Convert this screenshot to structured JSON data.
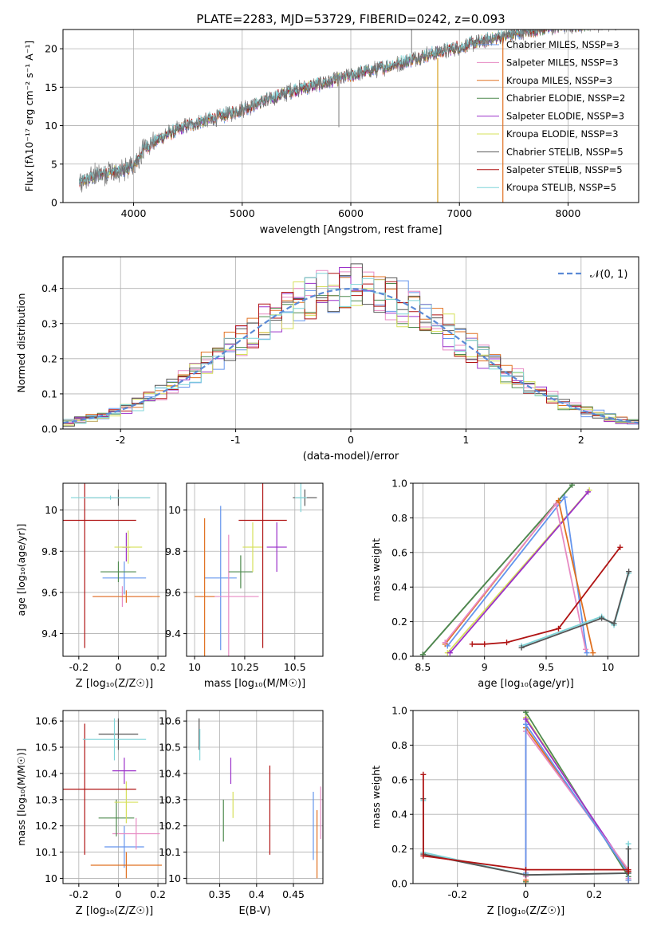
{
  "title": "PLATE=2283, MJD=53729, FIBERID=0242, z=0.093",
  "colors": {
    "Chabrier MILES": "#6495ed",
    "Salpeter MILES": "#e78ac3",
    "Kroupa MILES": "#e07020",
    "Chabrier ELODIE": "#4e8a4e",
    "Salpeter ELODIE": "#9b30c9",
    "Kroupa ELODIE": "#d6e05a",
    "Chabrier STELIB": "#555555",
    "Salpeter STELIB": "#b01414",
    "Kroupa STELIB": "#7fd4d8"
  },
  "chart_data": [
    {
      "id": "spectrum",
      "type": "line",
      "xlabel": "wavelength [Angstrom, rest frame]",
      "ylabel": "Flux [fλ10⁻¹⁷ erg cm⁻² s⁻¹ A⁻¹]",
      "xlim": [
        3350,
        8650
      ],
      "ylim": [
        0,
        22.5
      ],
      "xticks": [
        4000,
        5000,
        6000,
        7000,
        8000
      ],
      "yticks": [
        0,
        5,
        10,
        15,
        20
      ],
      "grid": true,
      "legend_position": "right",
      "legend": [
        "Chabrier MILES, NSSP=3",
        "Salpeter MILES, NSSP=3",
        "Kroupa MILES, NSSP=3",
        "Chabrier ELODIE, NSSP=2",
        "Salpeter ELODIE, NSSP=3",
        "Kroupa ELODIE, NSSP=3",
        "Chabrier STELIB, NSSP=5",
        "Salpeter STELIB, NSSP=5",
        "Kroupa STELIB, NSSP=5"
      ],
      "continuum": {
        "x": [
          3500,
          3700,
          3850,
          4000,
          4100,
          4300,
          4500,
          4800,
          5000,
          5200,
          5500,
          5800,
          6100,
          6400,
          6700,
          7000,
          7300,
          7600,
          7900,
          8200,
          8500
        ],
        "y": [
          2.5,
          3.8,
          4.0,
          4.7,
          7.1,
          8.8,
          10.0,
          11.2,
          12.1,
          13.2,
          14.7,
          15.7,
          16.9,
          17.9,
          19.2,
          20.2,
          21.3,
          22.2,
          22.9,
          23.2,
          23.6
        ]
      },
      "data_spikes": [
        {
          "x": 6800,
          "y_from": 18.8,
          "y_to": 0
        },
        {
          "x": 7400,
          "y_from": 21.5,
          "y_to": 0
        },
        {
          "x": 6560,
          "y_from": 19.5,
          "y_to": 22.5
        },
        {
          "x": 5890,
          "y_from": 16.3,
          "y_to": 9.8
        }
      ]
    },
    {
      "id": "residuals",
      "type": "bar",
      "xlabel": "(data-model)/error",
      "ylabel": "Normed distribution",
      "xlim": [
        -2.5,
        2.5
      ],
      "ylim": [
        0,
        0.49
      ],
      "xticks": [
        -2,
        -1,
        0,
        1,
        2
      ],
      "yticks": [
        0.0,
        0.1,
        0.2,
        0.3,
        0.4
      ],
      "grid": true,
      "bin_width": 0.1,
      "legend": "𝒩(0, 1)",
      "legend_position": "upper right",
      "reference": "normal(0,1)"
    },
    {
      "id": "age_vs_Z",
      "type": "scatter",
      "xlabel": "Z [log₁₀(Z/Z☉)]",
      "ylabel": "age  [log₁₀(age/yr)]",
      "xlim": [
        -0.28,
        0.24
      ],
      "ylim": [
        9.29,
        10.13
      ],
      "xticks": [
        -0.2,
        0.0,
        0.2
      ],
      "yticks": [
        9.4,
        9.6,
        9.8,
        10.0
      ],
      "grid": true,
      "points": [
        {
          "model": "Chabrier MILES",
          "x": 0.03,
          "y": 9.67,
          "xerr": 0.11,
          "yerr": 0.08
        },
        {
          "model": "Salpeter MILES",
          "x": 0.02,
          "y": 9.58,
          "xerr": 0.15,
          "yerr": 0.05
        },
        {
          "model": "Kroupa MILES",
          "x": 0.04,
          "y": 9.58,
          "xerr": 0.17,
          "yerr": 0.03
        },
        {
          "model": "Chabrier ELODIE",
          "x": 0.0,
          "y": 9.7,
          "xerr": 0.09,
          "yerr": 0.05
        },
        {
          "model": "Salpeter ELODIE",
          "x": 0.04,
          "y": 9.82,
          "xerr": 0.02,
          "yerr": 0.07
        },
        {
          "model": "Kroupa ELODIE",
          "x": 0.05,
          "y": 9.82,
          "xerr": 0.07,
          "yerr": 0.08
        },
        {
          "model": "Chabrier STELIB",
          "x": 0.0,
          "y": 10.06,
          "xerr": 0.16,
          "yerr": 0.04
        },
        {
          "model": "Salpeter STELIB",
          "x": -0.17,
          "y": 9.95,
          "xerr": 0.26,
          "yerr": 0.62
        },
        {
          "model": "Kroupa STELIB",
          "x": -0.04,
          "y": 10.06,
          "xerr": 0.2,
          "yerr": 0.01
        }
      ]
    },
    {
      "id": "age_vs_mass",
      "type": "scatter",
      "xlabel": "mass [log₁₀(M/M☉)]",
      "ylabel": "",
      "xlim": [
        9.96,
        10.64
      ],
      "ylim": [
        9.29,
        10.13
      ],
      "xticks": [
        10.0,
        10.25,
        10.5
      ],
      "yticks": [
        9.4,
        9.6,
        9.8,
        10.0
      ],
      "grid": true,
      "points": [
        {
          "model": "Chabrier MILES",
          "x": 10.13,
          "y": 9.67,
          "xerr": 0.08,
          "yerr": 0.35
        },
        {
          "model": "Salpeter MILES",
          "x": 10.17,
          "y": 9.58,
          "xerr": 0.15,
          "yerr": 0.3
        },
        {
          "model": "Kroupa MILES",
          "x": 10.05,
          "y": 9.58,
          "xerr": 0.05,
          "yerr": 0.38
        },
        {
          "model": "Chabrier ELODIE",
          "x": 10.23,
          "y": 9.7,
          "xerr": 0.06,
          "yerr": 0.08
        },
        {
          "model": "Salpeter ELODIE",
          "x": 10.41,
          "y": 9.82,
          "xerr": 0.05,
          "yerr": 0.12
        },
        {
          "model": "Kroupa ELODIE",
          "x": 10.29,
          "y": 9.82,
          "xerr": 0.05,
          "yerr": 0.12
        },
        {
          "model": "Chabrier STELIB",
          "x": 10.55,
          "y": 10.06,
          "xerr": 0.06,
          "yerr": 0.04
        },
        {
          "model": "Salpeter STELIB",
          "x": 10.34,
          "y": 9.95,
          "xerr": 0.12,
          "yerr": 0.62
        },
        {
          "model": "Kroupa STELIB",
          "x": 10.53,
          "y": 10.06,
          "xerr": 0.03,
          "yerr": 0.07
        }
      ]
    },
    {
      "id": "weight_vs_age",
      "type": "line",
      "xlabel": "age  [log₁₀(age/yr)]",
      "ylabel": "mass weight",
      "xlim": [
        8.42,
        10.25
      ],
      "ylim": [
        0,
        1
      ],
      "xticks": [
        8.5,
        9.0,
        9.5,
        10.0
      ],
      "yticks": [
        0.0,
        0.2,
        0.4,
        0.6,
        0.8,
        1.0
      ],
      "grid": true,
      "series": [
        {
          "model": "Chabrier STELIB",
          "x": [
            8.5,
            9.71
          ],
          "y": [
            0.01,
            0.99
          ]
        },
        {
          "model": "Chabrier ELODIE",
          "x": [
            8.5,
            9.71
          ],
          "y": [
            0.01,
            0.99
          ]
        },
        {
          "model": "Kroupa ELODIE",
          "x": [
            8.7,
            9.85
          ],
          "y": [
            0.02,
            0.96
          ]
        },
        {
          "model": "Salpeter ELODIE",
          "x": [
            8.72,
            9.84
          ],
          "y": [
            0.02,
            0.95
          ]
        },
        {
          "model": "Chabrier MILES",
          "x": [
            8.7,
            9.65,
            9.83
          ],
          "y": [
            0.06,
            0.92,
            0.02
          ]
        },
        {
          "model": "Kroupa MILES",
          "x": [
            8.68,
            9.6,
            9.88
          ],
          "y": [
            0.07,
            0.9,
            0.02
          ]
        },
        {
          "model": "Salpeter MILES",
          "x": [
            8.68,
            9.58,
            9.82
          ],
          "y": [
            0.08,
            0.88,
            0.04
          ]
        },
        {
          "model": "Kroupa STELIB",
          "x": [
            9.3,
            9.95,
            10.05,
            10.17
          ],
          "y": [
            0.06,
            0.23,
            0.18,
            0.48
          ]
        },
        {
          "model": "Chabrier STELIB",
          "x": [
            9.3,
            9.95,
            10.05,
            10.17
          ],
          "y": [
            0.05,
            0.22,
            0.19,
            0.49
          ]
        },
        {
          "model": "Salpeter STELIB",
          "x": [
            8.9,
            9.0,
            9.18,
            9.6,
            10.1
          ],
          "y": [
            0.07,
            0.07,
            0.08,
            0.16,
            0.63
          ]
        }
      ]
    },
    {
      "id": "mass_vs_Z",
      "type": "scatter",
      "xlabel": "Z [log₁₀(Z/Z☉)]",
      "ylabel": "mass [log₁₀(M/M☉)]",
      "xlim": [
        -0.28,
        0.24
      ],
      "ylim": [
        9.98,
        10.64
      ],
      "xticks": [
        -0.2,
        0.0,
        0.2
      ],
      "yticks": [
        10.0,
        10.1,
        10.2,
        10.3,
        10.4,
        10.5,
        10.6
      ],
      "grid": true,
      "points": [
        {
          "model": "Chabrier MILES",
          "x": 0.03,
          "y": 10.12,
          "xerr": 0.1,
          "yerr": 0.08
        },
        {
          "model": "Salpeter MILES",
          "x": 0.09,
          "y": 10.17,
          "xerr": 0.12,
          "yerr": 0.06
        },
        {
          "model": "Kroupa MILES",
          "x": 0.04,
          "y": 10.05,
          "xerr": 0.18,
          "yerr": 0.05
        },
        {
          "model": "Chabrier ELODIE",
          "x": -0.01,
          "y": 10.23,
          "xerr": 0.09,
          "yerr": 0.07
        },
        {
          "model": "Salpeter ELODIE",
          "x": 0.03,
          "y": 10.41,
          "xerr": 0.06,
          "yerr": 0.05
        },
        {
          "model": "Kroupa ELODIE",
          "x": 0.04,
          "y": 10.29,
          "xerr": 0.06,
          "yerr": 0.08
        },
        {
          "model": "Chabrier STELIB",
          "x": 0.0,
          "y": 10.55,
          "xerr": 0.1,
          "yerr": 0.06
        },
        {
          "model": "Salpeter STELIB",
          "x": -0.17,
          "y": 10.34,
          "xerr": 0.26,
          "yerr": 0.25
        },
        {
          "model": "Kroupa STELIB",
          "x": -0.02,
          "y": 10.53,
          "xerr": 0.16,
          "yerr": 0.08
        }
      ]
    },
    {
      "id": "mass_vs_EBV",
      "type": "scatter",
      "xlabel": "E(B-V)",
      "ylabel": "",
      "xlim": [
        0.305,
        0.49
      ],
      "ylim": [
        9.98,
        10.64
      ],
      "xticks": [
        0.35,
        0.4,
        0.45
      ],
      "yticks": [
        10.0,
        10.1,
        10.2,
        10.3,
        10.4,
        10.5,
        10.6
      ],
      "grid": true,
      "points": [
        {
          "model": "Chabrier MILES",
          "x": 0.477,
          "y": 10.2,
          "yerr": 0.13
        },
        {
          "model": "Salpeter MILES",
          "x": 0.487,
          "y": 10.25,
          "yerr": 0.1
        },
        {
          "model": "Kroupa MILES",
          "x": 0.482,
          "y": 10.13,
          "yerr": 0.13
        },
        {
          "model": "Chabrier ELODIE",
          "x": 0.355,
          "y": 10.22,
          "yerr": 0.08
        },
        {
          "model": "Salpeter ELODIE",
          "x": 0.365,
          "y": 10.41,
          "yerr": 0.05
        },
        {
          "model": "Kroupa ELODIE",
          "x": 0.368,
          "y": 10.28,
          "yerr": 0.05
        },
        {
          "model": "Chabrier STELIB",
          "x": 0.322,
          "y": 10.55,
          "yerr": 0.06
        },
        {
          "model": "Salpeter STELIB",
          "x": 0.418,
          "y": 10.26,
          "yerr": 0.17
        },
        {
          "model": "Kroupa STELIB",
          "x": 0.323,
          "y": 10.51,
          "yerr": 0.06
        }
      ]
    },
    {
      "id": "weight_vs_Z",
      "type": "line",
      "xlabel": "Z [log₁₀(Z/Z☉)]",
      "ylabel": "mass weight",
      "xlim": [
        -0.33,
        0.33
      ],
      "ylim": [
        0,
        1
      ],
      "xticks": [
        -0.2,
        0.0,
        0.2
      ],
      "yticks": [
        0.0,
        0.2,
        0.4,
        0.6,
        0.8,
        1.0
      ],
      "grid": true,
      "series": [
        {
          "model": "Chabrier ELODIE",
          "x": [
            0.0,
            0.0,
            0.3,
            0.3
          ],
          "y": [
            0.01,
            0.99,
            0.04,
            0.02
          ]
        },
        {
          "model": "Kroupa ELODIE",
          "x": [
            0.0,
            0.0,
            0.3,
            0.3
          ],
          "y": [
            0.02,
            0.96,
            0.06,
            0.02
          ]
        },
        {
          "model": "Salpeter ELODIE",
          "x": [
            0.0,
            0.0,
            0.3,
            0.3
          ],
          "y": [
            0.02,
            0.95,
            0.07,
            0.02
          ]
        },
        {
          "model": "Kroupa MILES",
          "x": [
            0.0,
            0.0,
            0.3,
            0.3
          ],
          "y": [
            0.02,
            0.9,
            0.07,
            0.02
          ]
        },
        {
          "model": "Salpeter MILES",
          "x": [
            0.0,
            0.0,
            0.3,
            0.3
          ],
          "y": [
            0.04,
            0.88,
            0.08,
            0.03
          ]
        },
        {
          "model": "Chabrier MILES",
          "x": [
            0.0,
            0.0,
            0.3,
            0.3
          ],
          "y": [
            0.06,
            0.92,
            0.06,
            0.02
          ]
        },
        {
          "model": "Kroupa STELIB",
          "x": [
            -0.3,
            -0.3,
            0.0,
            0.3,
            0.3
          ],
          "y": [
            0.48,
            0.18,
            0.05,
            0.06,
            0.23
          ]
        },
        {
          "model": "Chabrier STELIB",
          "x": [
            -0.3,
            -0.3,
            0.0,
            0.3,
            0.3
          ],
          "y": [
            0.49,
            0.17,
            0.05,
            0.06,
            0.2
          ]
        },
        {
          "model": "Salpeter STELIB",
          "x": [
            -0.3,
            -0.3,
            0.0,
            0.3,
            0.3
          ],
          "y": [
            0.63,
            0.16,
            0.08,
            0.08,
            0.07
          ]
        }
      ]
    }
  ]
}
